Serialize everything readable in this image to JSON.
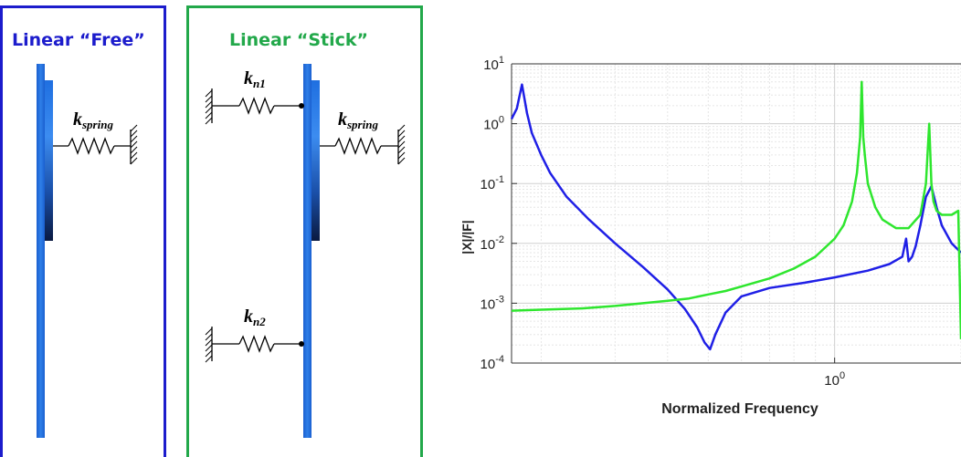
{
  "free_panel": {
    "title": "Linear “Free”",
    "spring_label": "k",
    "spring_subscript": "spring",
    "border_color": "#1c1ccc"
  },
  "stick_panel": {
    "title": "Linear “Stick”",
    "spring_top_label": "k",
    "spring_top_subscript": "n1",
    "spring_bottom_label": "k",
    "spring_bottom_subscript": "n2",
    "spring_right_label": "k",
    "spring_right_subscript": "spring",
    "border_color": "#22a84a"
  },
  "chart_data": {
    "type": "line",
    "xlabel": "Normalized Frequency",
    "ylabel": "|X|/|F|",
    "x_scale": "log",
    "y_scale": "log",
    "xlim": [
      0.17,
      2.0
    ],
    "ylim": [
      0.0001,
      10
    ],
    "x_ticks": [
      {
        "value": 1.0,
        "label": "10",
        "exp": "0"
      }
    ],
    "y_ticks": [
      {
        "value": 10,
        "label": "10",
        "exp": "1"
      },
      {
        "value": 1,
        "label": "10",
        "exp": "0"
      },
      {
        "value": 0.1,
        "label": "10",
        "exp": "-1"
      },
      {
        "value": 0.01,
        "label": "10",
        "exp": "-2"
      },
      {
        "value": 0.001,
        "label": "10",
        "exp": "-3"
      },
      {
        "value": 0.0001,
        "label": "10",
        "exp": "-4"
      }
    ],
    "grid": true,
    "series": [
      {
        "color": "#1f1fe6",
        "x": [
          0.17,
          0.175,
          0.18,
          0.185,
          0.19,
          0.2,
          0.21,
          0.23,
          0.26,
          0.3,
          0.35,
          0.4,
          0.44,
          0.47,
          0.49,
          0.505,
          0.52,
          0.55,
          0.6,
          0.7,
          0.85,
          1.0,
          1.2,
          1.35,
          1.45,
          1.48,
          1.5,
          1.53,
          1.56,
          1.6,
          1.65,
          1.7,
          1.75,
          1.8,
          1.9,
          2.0
        ],
        "y": [
          1.2,
          1.8,
          4.5,
          1.5,
          0.7,
          0.3,
          0.15,
          0.06,
          0.025,
          0.01,
          0.004,
          0.0017,
          0.0008,
          0.0004,
          0.00022,
          0.00017,
          0.0003,
          0.0007,
          0.0013,
          0.0018,
          0.0022,
          0.0027,
          0.0035,
          0.0045,
          0.006,
          0.012,
          0.005,
          0.006,
          0.009,
          0.02,
          0.06,
          0.09,
          0.04,
          0.02,
          0.01,
          0.007
        ]
      },
      {
        "color": "#2ee62e",
        "x": [
          0.17,
          0.2,
          0.25,
          0.3,
          0.35,
          0.4,
          0.45,
          0.5,
          0.55,
          0.6,
          0.7,
          0.8,
          0.9,
          1.0,
          1.05,
          1.1,
          1.13,
          1.15,
          1.16,
          1.17,
          1.18,
          1.2,
          1.25,
          1.3,
          1.4,
          1.5,
          1.6,
          1.65,
          1.68,
          1.7,
          1.72,
          1.75,
          1.8,
          1.9,
          1.97,
          2.0
        ],
        "y": [
          0.00075,
          0.00078,
          0.00082,
          0.0009,
          0.001,
          0.0011,
          0.0012,
          0.0014,
          0.0016,
          0.0019,
          0.0026,
          0.0038,
          0.006,
          0.012,
          0.02,
          0.05,
          0.15,
          0.6,
          5.0,
          0.6,
          0.3,
          0.1,
          0.04,
          0.025,
          0.018,
          0.018,
          0.03,
          0.1,
          1.0,
          0.1,
          0.05,
          0.035,
          0.03,
          0.03,
          0.035,
          0.00025
        ]
      }
    ]
  }
}
